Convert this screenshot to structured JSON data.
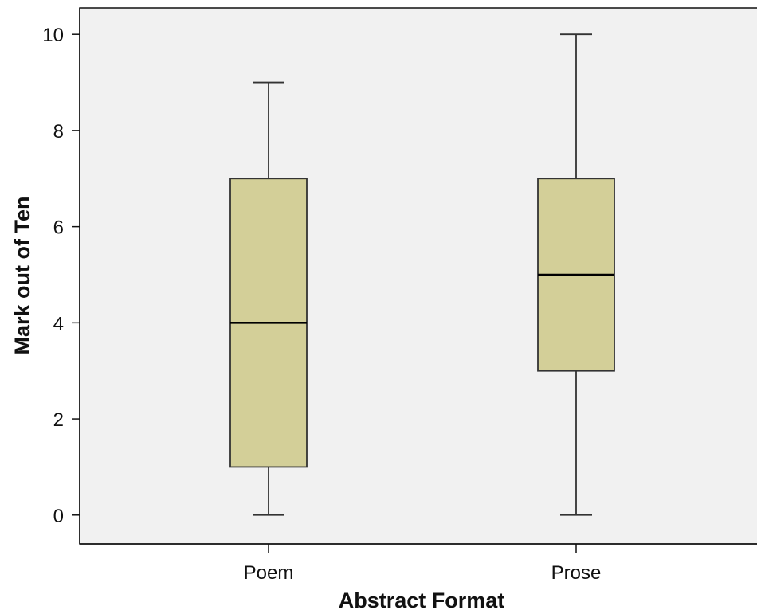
{
  "chart_data": {
    "type": "box",
    "xlabel": "Abstract Format",
    "ylabel": "Mark out of Ten",
    "categories": [
      "Poem",
      "Prose"
    ],
    "boxes": [
      {
        "category": "Poem",
        "min": 0,
        "q1": 1,
        "median": 4,
        "q3": 7,
        "max": 9
      },
      {
        "category": "Prose",
        "min": 0,
        "q1": 3,
        "median": 5,
        "q3": 7,
        "max": 10
      }
    ],
    "ylim": [
      -0.6,
      10.55
    ],
    "yticks": [
      0,
      2,
      4,
      6,
      8,
      10
    ],
    "grid": false,
    "legend": "none",
    "colors": {
      "plot_background": "#f1f1f1",
      "box_fill": "#d3cf98",
      "box_stroke": "#333333",
      "median": "#000000",
      "axis": "#111111"
    }
  }
}
